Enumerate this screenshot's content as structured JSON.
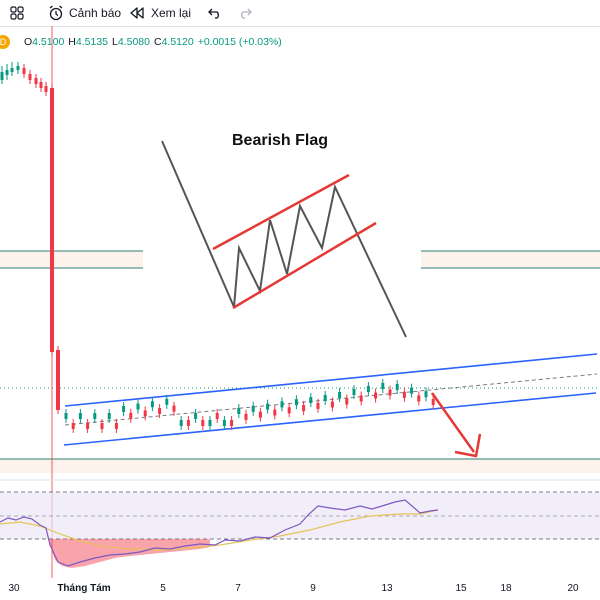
{
  "toolbar": {
    "alert_label": "Cảnh báo",
    "replay_label": "Xem lại"
  },
  "legend": {
    "symbol_badge": "D",
    "open_key": "O",
    "open": "4.5100",
    "high_key": "H",
    "high": "4.5135",
    "low_key": "L",
    "low": "4.5080",
    "close_key": "C",
    "close": "4.5120",
    "change": "+0.0015 (+0.03%)"
  },
  "diagram": {
    "title": "Bearish Flag"
  },
  "x_axis": {
    "labels": [
      "30",
      "Tháng Tám",
      "5",
      "7",
      "9",
      "13",
      "15",
      "18",
      "20"
    ]
  },
  "colors": {
    "up": "#089981",
    "down": "#f23645",
    "channel": "#2962ff",
    "flag": "#e53935",
    "support": "#2f7d74",
    "rsi_line": "#7e57c2",
    "rsi_ma": "#e6c35c"
  },
  "icons": {
    "layout": "grid-icon",
    "alert": "alarm-clock-icon",
    "replay": "rewind-icon",
    "undo": "undo-icon",
    "redo": "redo-icon"
  }
}
